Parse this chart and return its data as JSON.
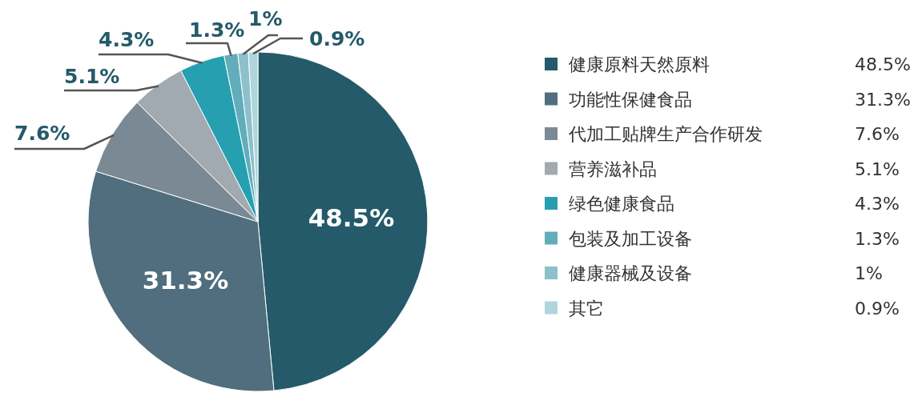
{
  "chart_data": {
    "type": "pie",
    "categories": [
      "健康原料天然原料",
      "功能性保健食品",
      "代加工贴牌生产合作研发",
      "营养滋补品",
      "绿色健康食品",
      "包装及加工设备",
      "健康器械及设备",
      "其它"
    ],
    "values": [
      48.5,
      31.3,
      7.6,
      5.1,
      4.3,
      1.3,
      1,
      0.9
    ],
    "colors": [
      "#245a69",
      "#506e7d",
      "#7a8994",
      "#a1a9b1",
      "#26a0b1",
      "#62adba",
      "#8cc0cb",
      "#b0d5dc"
    ],
    "value_labels": [
      "48.5%",
      "31.3%",
      "7.6%",
      "5.1%",
      "4.3%",
      "1.3%",
      "1%",
      "0.9%"
    ],
    "legend": "right"
  }
}
